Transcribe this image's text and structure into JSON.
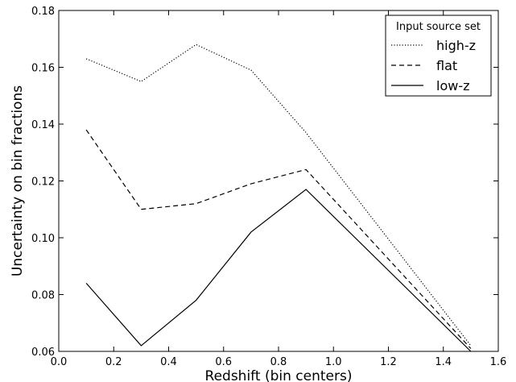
{
  "chart_data": {
    "type": "line",
    "xlabel": "Redshift (bin centers)",
    "ylabel": "Uncertainty on bin fractions",
    "xlim": [
      0.0,
      1.6
    ],
    "ylim": [
      0.06,
      0.18
    ],
    "xticks": [
      "0.0",
      "0.2",
      "0.4",
      "0.6",
      "0.8",
      "1.0",
      "1.2",
      "1.4",
      "1.6"
    ],
    "yticks": [
      "0.06",
      "0.08",
      "0.10",
      "0.12",
      "0.14",
      "0.16",
      "0.18"
    ],
    "x": [
      0.1,
      0.3,
      0.5,
      0.7,
      0.9,
      1.5
    ],
    "grid": false,
    "legend": {
      "title": "Input source set",
      "placement": "top-right"
    },
    "series": [
      {
        "name": "high-z",
        "linestyle": "dotted",
        "color": "#000000",
        "values": [
          0.163,
          0.155,
          0.168,
          0.159,
          0.137,
          0.062
        ]
      },
      {
        "name": "flat",
        "linestyle": "dashed",
        "color": "#000000",
        "values": [
          0.138,
          0.11,
          0.112,
          0.119,
          0.124,
          0.061
        ]
      },
      {
        "name": "low-z",
        "linestyle": "solid",
        "color": "#000000",
        "values": [
          0.084,
          0.062,
          0.078,
          0.102,
          0.117,
          0.06
        ]
      }
    ]
  }
}
